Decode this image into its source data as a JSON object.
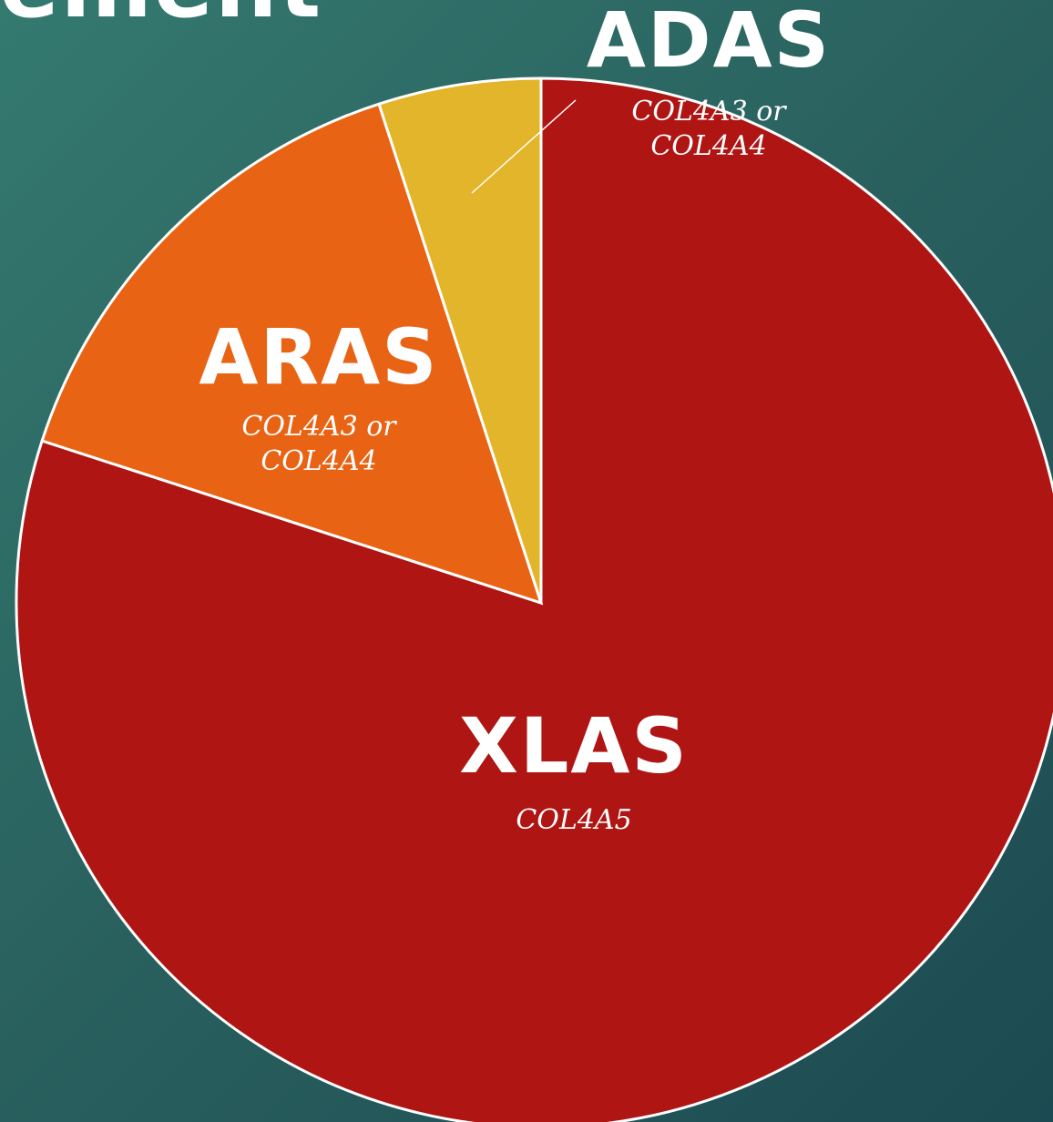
{
  "chart_data": {
    "type": "pie",
    "title": "urement",
    "categories": [
      "XLAS",
      "ARAS",
      "ADAS"
    ],
    "sublabels": [
      [
        "COL4A5"
      ],
      [
        "COL4A3 or",
        "COL4A4"
      ],
      [
        "COL4A3 or",
        "COL4A4"
      ]
    ],
    "values": [
      80,
      15,
      5
    ],
    "colors": [
      "#ae1513",
      "#e86314",
      "#e3b52a"
    ]
  }
}
